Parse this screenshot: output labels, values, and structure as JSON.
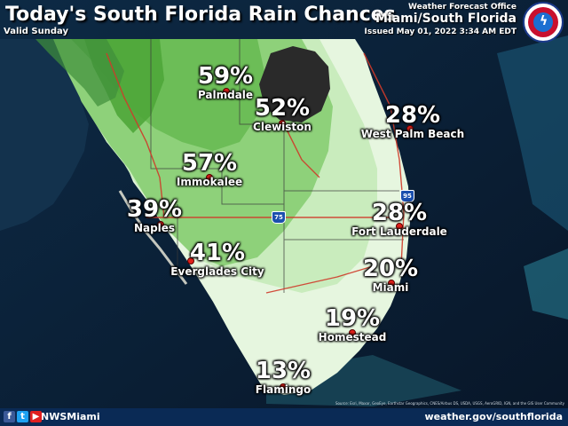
{
  "header": {
    "title": "Today's South Florida Rain Chances",
    "valid": "Valid Sunday",
    "office_small": "Weather Forecast Office",
    "office_big": "Miami/South Florida",
    "issued": "Issued May 01, 2022 3:34 AM EDT"
  },
  "cities": [
    {
      "name": "Palmdale",
      "pct": "59%"
    },
    {
      "name": "Clewiston",
      "pct": "52%"
    },
    {
      "name": "West Palm Beach",
      "pct": "28%"
    },
    {
      "name": "Immokalee",
      "pct": "57%"
    },
    {
      "name": "Naples",
      "pct": "39%"
    },
    {
      "name": "Fort Lauderdale",
      "pct": "28%"
    },
    {
      "name": "Everglades City",
      "pct": "41%"
    },
    {
      "name": "Miami",
      "pct": "20%"
    },
    {
      "name": "Homestead",
      "pct": "19%"
    },
    {
      "name": "Flamingo",
      "pct": "13%"
    }
  ],
  "shields": {
    "i75": "75",
    "i95": "95"
  },
  "footer": {
    "handle": "NWSMiami",
    "website": "weather.gov/southflorida",
    "attribution": "Source: Esri, Maxar, GeoEye, Earthstar Geographics, CNES/Airbus DS, USDA, USGS, AeroGRID, IGN, and the GIS User Community",
    "icons": [
      "facebook-icon",
      "twitter-icon",
      "youtube-icon"
    ]
  },
  "colors": {
    "high": "#4fa63a",
    "mid": "#8ed17a",
    "low": "#c9ecbd",
    "lowest": "#e6f6df",
    "lake": "#2a2a2a",
    "water": "#0b1d33"
  }
}
